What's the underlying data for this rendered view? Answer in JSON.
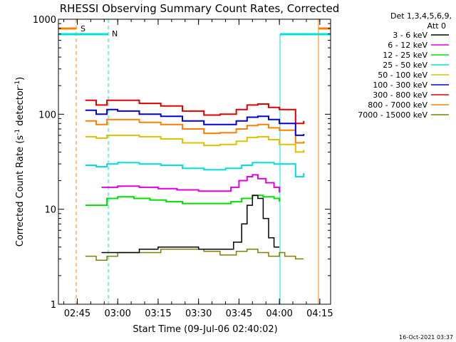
{
  "chart_data": {
    "type": "line",
    "title": "RHESSI Observing Summary Count Rates, Corrected",
    "xlabel": "Start Time (09-Jul-06 02:40:02)",
    "ylabel": "Corrected Count Rate (s",
    "ylabel_sup1": "-1",
    "ylabel_mid": " detector",
    "ylabel_sup2": "-1",
    "ylabel_end": ")",
    "yscale": "log",
    "ylim": [
      1,
      1000
    ],
    "xlim_minutes": [
      -2,
      99
    ],
    "x_ticks": [
      {
        "label": "02:45",
        "minutes": 5
      },
      {
        "label": "03:00",
        "minutes": 20
      },
      {
        "label": "03:15",
        "minutes": 35
      },
      {
        "label": "03:30",
        "minutes": 50
      },
      {
        "label": "03:45",
        "minutes": 65
      },
      {
        "label": "04:00",
        "minutes": 80
      },
      {
        "label": "04:15",
        "minutes": 95
      }
    ],
    "y_ticks": [
      {
        "label": "1",
        "value": 1
      },
      {
        "label": "10",
        "value": 10
      },
      {
        "label": "100",
        "value": 100
      },
      {
        "label": "1000",
        "value": 1000
      }
    ],
    "legend_header": [
      "Det 1,3,4,5,6,9,",
      "Att 0"
    ],
    "legend_position": "right",
    "series": [
      {
        "name": "3 - 6 keV",
        "color": "#000000",
        "x": [
          14,
          20,
          28,
          35,
          42,
          50,
          57,
          63,
          66,
          68,
          70,
          72,
          74,
          76,
          78,
          80
        ],
        "values": [
          3.5,
          3.5,
          3.8,
          4,
          4,
          3.8,
          3.8,
          4.5,
          7,
          11,
          14,
          13,
          8,
          5,
          4,
          4
        ]
      },
      {
        "name": "6 - 12 keV",
        "color": "#e000e0",
        "x": [
          14,
          20,
          28,
          35,
          42,
          50,
          57,
          62,
          65,
          68,
          70,
          72,
          75,
          78,
          80
        ],
        "values": [
          17,
          17.5,
          17,
          16.5,
          16,
          15.5,
          15.5,
          17,
          20,
          22,
          23,
          21,
          19,
          17,
          15
        ]
      },
      {
        "name": "12 - 25 keV",
        "color": "#00e000",
        "x": [
          8,
          12,
          16,
          20,
          26,
          32,
          38,
          44,
          50,
          56,
          62,
          66,
          70,
          74,
          78,
          80
        ],
        "values": [
          11,
          11,
          13,
          13.5,
          13,
          12.5,
          12,
          11.5,
          11.5,
          11.5,
          12,
          13,
          14,
          13.5,
          13,
          12
        ]
      },
      {
        "name": "25 - 50 keV",
        "color": "#00e0e0",
        "x": [
          8,
          12,
          16,
          20,
          28,
          36,
          44,
          52,
          60,
          66,
          70,
          74,
          78,
          80,
          86,
          89
        ],
        "values": [
          29,
          28,
          30,
          31,
          30,
          29,
          27,
          26,
          27,
          29,
          31,
          31,
          30,
          30,
          22,
          24
        ]
      },
      {
        "name": "50 - 100 keV",
        "color": "#e0c000",
        "x": [
          8,
          12,
          16,
          20,
          28,
          36,
          44,
          52,
          58,
          64,
          68,
          72,
          76,
          80,
          86,
          89
        ],
        "values": [
          58,
          56,
          60,
          60,
          58,
          55,
          50,
          47,
          48,
          52,
          57,
          58,
          54,
          48,
          40,
          42
        ]
      },
      {
        "name": "100 - 300 keV",
        "color": "#0000e0",
        "x": [
          8,
          12,
          16,
          20,
          28,
          36,
          44,
          52,
          58,
          64,
          68,
          72,
          76,
          80,
          86,
          89
        ],
        "values": [
          110,
          100,
          112,
          108,
          100,
          95,
          85,
          78,
          78,
          85,
          93,
          95,
          88,
          80,
          60,
          62
        ]
      },
      {
        "name": "300 - 800 keV",
        "color": "#e00000",
        "x": [
          8,
          12,
          16,
          20,
          28,
          36,
          44,
          52,
          58,
          64,
          68,
          72,
          76,
          80,
          86,
          89
        ],
        "values": [
          140,
          125,
          140,
          140,
          130,
          122,
          108,
          98,
          100,
          112,
          125,
          128,
          118,
          112,
          80,
          85
        ]
      },
      {
        "name": "800 - 7000 keV",
        "color": "#ff8000",
        "x": [
          8,
          12,
          16,
          20,
          28,
          36,
          44,
          52,
          58,
          64,
          68,
          72,
          76,
          80,
          86,
          89
        ],
        "values": [
          85,
          78,
          88,
          88,
          82,
          78,
          70,
          63,
          64,
          70,
          76,
          78,
          72,
          68,
          50,
          52
        ]
      },
      {
        "name": "7000 - 15000 keV",
        "color": "#808000",
        "x": [
          8,
          12,
          16,
          20,
          28,
          36,
          44,
          52,
          58,
          64,
          68,
          72,
          76,
          80,
          82,
          86,
          89
        ],
        "values": [
          3.2,
          2.9,
          3.2,
          3.5,
          3.5,
          3.8,
          3.8,
          3.6,
          3.3,
          3.6,
          3.8,
          3.5,
          3.2,
          3.5,
          3.2,
          3.0,
          3.0
        ]
      }
    ],
    "annotations": [
      {
        "text": "S",
        "color": "#ff8000"
      },
      {
        "text": "N",
        "color": "#00e0e0"
      }
    ],
    "timestamp": "16-Oct-2021 03:37"
  }
}
